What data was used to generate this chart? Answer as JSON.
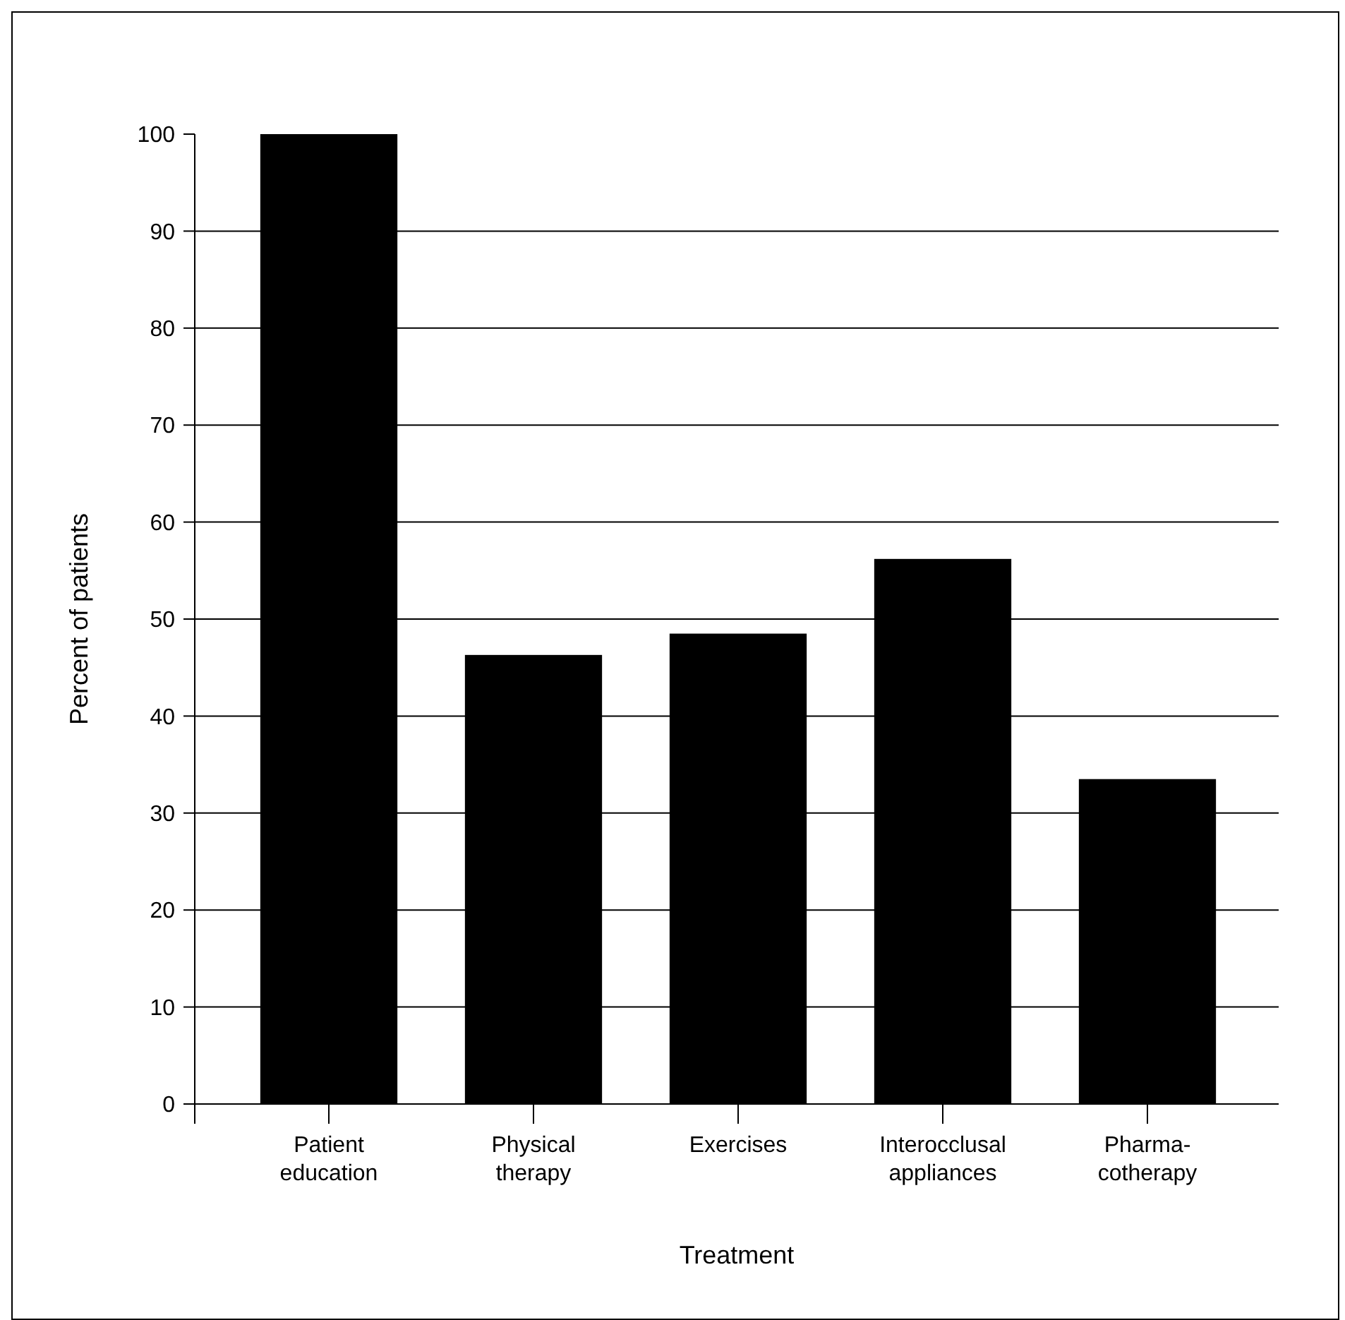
{
  "chart_data": {
    "type": "bar",
    "xlabel": "Treatment",
    "ylabel": "Percent of patients",
    "categories": [
      "Patient education",
      "Physical therapy",
      "Exercises",
      "Interocclusal appliances",
      "Pharma-cotherapy"
    ],
    "values": [
      100,
      46.3,
      48.5,
      56.2,
      33.5
    ],
    "color": "#000000",
    "ylim": [
      0,
      100
    ],
    "yticks": [
      0,
      10,
      20,
      30,
      40,
      50,
      60,
      70,
      80,
      90,
      100
    ],
    "grid": "y"
  }
}
